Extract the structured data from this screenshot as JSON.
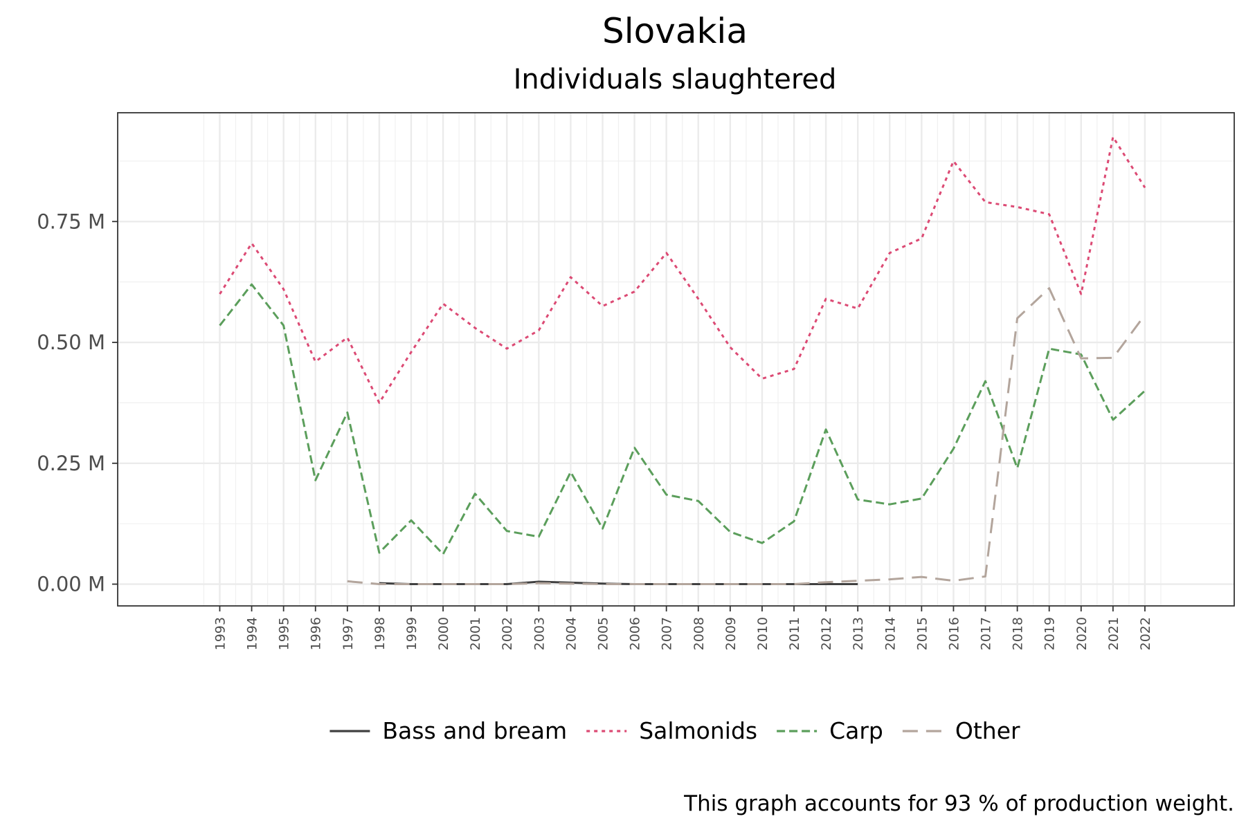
{
  "chart_data": {
    "type": "line",
    "title": "Slovakia",
    "subtitle": "Individuals slaughtered",
    "caption": "This graph accounts for 93 % of production weight.",
    "xlabel": "",
    "ylabel": "",
    "x": [
      1993,
      1994,
      1995,
      1996,
      1997,
      1998,
      1999,
      2000,
      2001,
      2002,
      2003,
      2004,
      2005,
      2006,
      2007,
      2008,
      2009,
      2010,
      2011,
      2012,
      2013,
      2014,
      2015,
      2016,
      2017,
      2018,
      2019,
      2020,
      2021,
      2022
    ],
    "x_tick_labels": [
      "1993",
      "1994",
      "1995",
      "1996",
      "1997",
      "1998",
      "1999",
      "2000",
      "2001",
      "2002",
      "2003",
      "2004",
      "2005",
      "2006",
      "2007",
      "2008",
      "2009",
      "2010",
      "2011",
      "2012",
      "2013",
      "2014",
      "2015",
      "2016",
      "2017",
      "2018",
      "2019",
      "2020",
      "2021",
      "2022"
    ],
    "y_ticks": [
      0,
      0.25,
      0.5,
      0.75
    ],
    "y_tick_labels": [
      "0.00 M",
      "0.25 M",
      "0.50 M",
      "0.75 M"
    ],
    "ylim": [
      -0.045,
      0.975
    ],
    "xlim": [
      1989.8,
      2024.8
    ],
    "grid": true,
    "legend_position": "bottom",
    "series": [
      {
        "name": "Bass and bream",
        "color": "#404040",
        "dash": "solid",
        "values": [
          null,
          null,
          null,
          null,
          null,
          0.002,
          0.0,
          0.0,
          0.0,
          0.0,
          0.005,
          0.003,
          0.001,
          0.0,
          0.0,
          0.0,
          0.0,
          0.0,
          0.0,
          0.0,
          0.0,
          null,
          null,
          null,
          null,
          null,
          null,
          null,
          null,
          null
        ]
      },
      {
        "name": "Salmonids",
        "color": "#dc4a74",
        "dash": "dotted",
        "values": [
          0.6,
          0.705,
          0.61,
          0.46,
          0.51,
          0.375,
          0.48,
          0.58,
          0.53,
          0.487,
          0.525,
          0.635,
          0.575,
          0.605,
          0.685,
          0.59,
          0.49,
          0.425,
          0.445,
          0.59,
          0.57,
          0.685,
          0.715,
          0.875,
          0.79,
          0.78,
          0.765,
          0.6,
          0.925,
          0.82
        ]
      },
      {
        "name": "Carp",
        "color": "#5b9e5b",
        "dash": "dashed",
        "values": [
          0.535,
          0.62,
          0.535,
          0.215,
          0.355,
          0.065,
          0.132,
          0.062,
          0.187,
          0.11,
          0.098,
          0.232,
          0.115,
          0.282,
          0.185,
          0.172,
          0.108,
          0.085,
          0.13,
          0.32,
          0.175,
          0.165,
          0.177,
          0.28,
          0.42,
          0.24,
          0.487,
          0.475,
          0.34,
          0.4
        ]
      },
      {
        "name": "Other",
        "color": "#b3a59c",
        "dash": "longdash",
        "values": [
          null,
          null,
          null,
          null,
          0.006,
          0.0,
          0.0,
          0.0,
          0.0,
          0.0,
          0.002,
          0.001,
          0.0,
          0.0,
          0.0,
          0.0,
          0.0,
          0.0,
          0.0,
          0.004,
          0.007,
          0.01,
          0.015,
          0.007,
          0.016,
          0.55,
          0.612,
          0.467,
          0.468,
          0.557
        ]
      }
    ]
  }
}
